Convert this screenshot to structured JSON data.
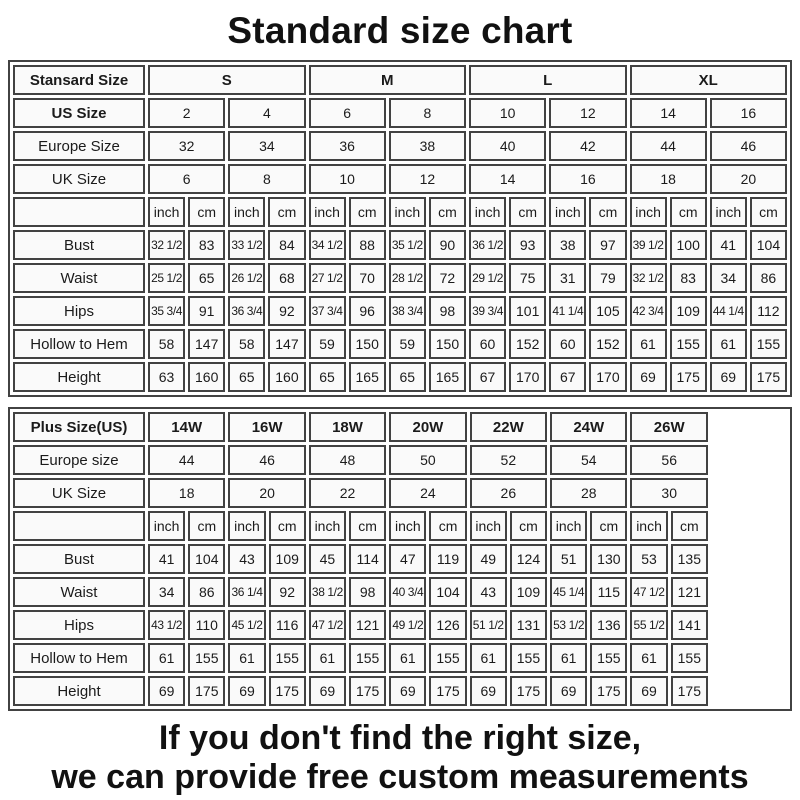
{
  "title": "Standard size chart",
  "footer": {
    "line1": "If you don't find the right size,",
    "line2": "we can provide free custom measurements"
  },
  "colors": {
    "border": "#424242",
    "cell_background": "#fafafa",
    "page_background": "#ffffff",
    "text": "#1b1b1b"
  },
  "standard_table": {
    "header_label": "Stansard Size",
    "size_groups": [
      "S",
      "M",
      "L",
      "XL"
    ],
    "size_rows": [
      {
        "label": "US Size",
        "values": [
          "2",
          "4",
          "6",
          "8",
          "10",
          "12",
          "14",
          "16"
        ]
      },
      {
        "label": "Europe Size",
        "values": [
          "32",
          "34",
          "36",
          "38",
          "40",
          "42",
          "44",
          "46"
        ]
      },
      {
        "label": "UK Size",
        "values": [
          "6",
          "8",
          "10",
          "12",
          "14",
          "16",
          "18",
          "20"
        ]
      }
    ],
    "units": [
      "inch",
      "cm",
      "inch",
      "cm",
      "inch",
      "cm",
      "inch",
      "cm",
      "inch",
      "cm",
      "inch",
      "cm",
      "inch",
      "cm",
      "inch",
      "cm"
    ],
    "measurements": [
      {
        "label": "Bust",
        "values": [
          "32 1/2",
          "83",
          "33 1/2",
          "84",
          "34 1/2",
          "88",
          "35 1/2",
          "90",
          "36 1/2",
          "93",
          "38",
          "97",
          "39 1/2",
          "100",
          "41",
          "104"
        ]
      },
      {
        "label": "Waist",
        "values": [
          "25 1/2",
          "65",
          "26 1/2",
          "68",
          "27 1/2",
          "70",
          "28 1/2",
          "72",
          "29 1/2",
          "75",
          "31",
          "79",
          "32 1/2",
          "83",
          "34",
          "86"
        ]
      },
      {
        "label": "Hips",
        "values": [
          "35 3/4",
          "91",
          "36 3/4",
          "92",
          "37 3/4",
          "96",
          "38 3/4",
          "98",
          "39 3/4",
          "101",
          "41 1/4",
          "105",
          "42 3/4",
          "109",
          "44 1/4",
          "112"
        ]
      },
      {
        "label": "Hollow to Hem",
        "values": [
          "58",
          "147",
          "58",
          "147",
          "59",
          "150",
          "59",
          "150",
          "60",
          "152",
          "60",
          "152",
          "61",
          "155",
          "61",
          "155"
        ]
      },
      {
        "label": "Height",
        "values": [
          "63",
          "160",
          "65",
          "160",
          "65",
          "165",
          "65",
          "165",
          "67",
          "170",
          "67",
          "170",
          "69",
          "175",
          "69",
          "175"
        ]
      }
    ]
  },
  "plus_table": {
    "header_label": "Plus Size(US)",
    "size_groups": [
      "14W",
      "16W",
      "18W",
      "20W",
      "22W",
      "24W",
      "26W"
    ],
    "size_rows": [
      {
        "label": "Europe size",
        "values": [
          "44",
          "46",
          "48",
          "50",
          "52",
          "54",
          "56"
        ]
      },
      {
        "label": "UK Size",
        "values": [
          "18",
          "20",
          "22",
          "24",
          "26",
          "28",
          "30"
        ]
      }
    ],
    "units": [
      "inch",
      "cm",
      "inch",
      "cm",
      "inch",
      "cm",
      "inch",
      "cm",
      "inch",
      "cm",
      "inch",
      "cm",
      "inch",
      "cm"
    ],
    "measurements": [
      {
        "label": "Bust",
        "values": [
          "41",
          "104",
          "43",
          "109",
          "45",
          "114",
          "47",
          "119",
          "49",
          "124",
          "51",
          "130",
          "53",
          "135"
        ]
      },
      {
        "label": "Waist",
        "values": [
          "34",
          "86",
          "36 1/4",
          "92",
          "38 1/2",
          "98",
          "40 3/4",
          "104",
          "43",
          "109",
          "45 1/4",
          "115",
          "47 1/2",
          "121"
        ]
      },
      {
        "label": "Hips",
        "values": [
          "43 1/2",
          "110",
          "45 1/2",
          "116",
          "47 1/2",
          "121",
          "49 1/2",
          "126",
          "51 1/2",
          "131",
          "53 1/2",
          "136",
          "55 1/2",
          "141"
        ]
      },
      {
        "label": "Hollow to Hem",
        "values": [
          "61",
          "155",
          "61",
          "155",
          "61",
          "155",
          "61",
          "155",
          "61",
          "155",
          "61",
          "155",
          "61",
          "155"
        ]
      },
      {
        "label": "Height",
        "values": [
          "69",
          "175",
          "69",
          "175",
          "69",
          "175",
          "69",
          "175",
          "69",
          "175",
          "69",
          "175",
          "69",
          "175"
        ]
      }
    ]
  }
}
